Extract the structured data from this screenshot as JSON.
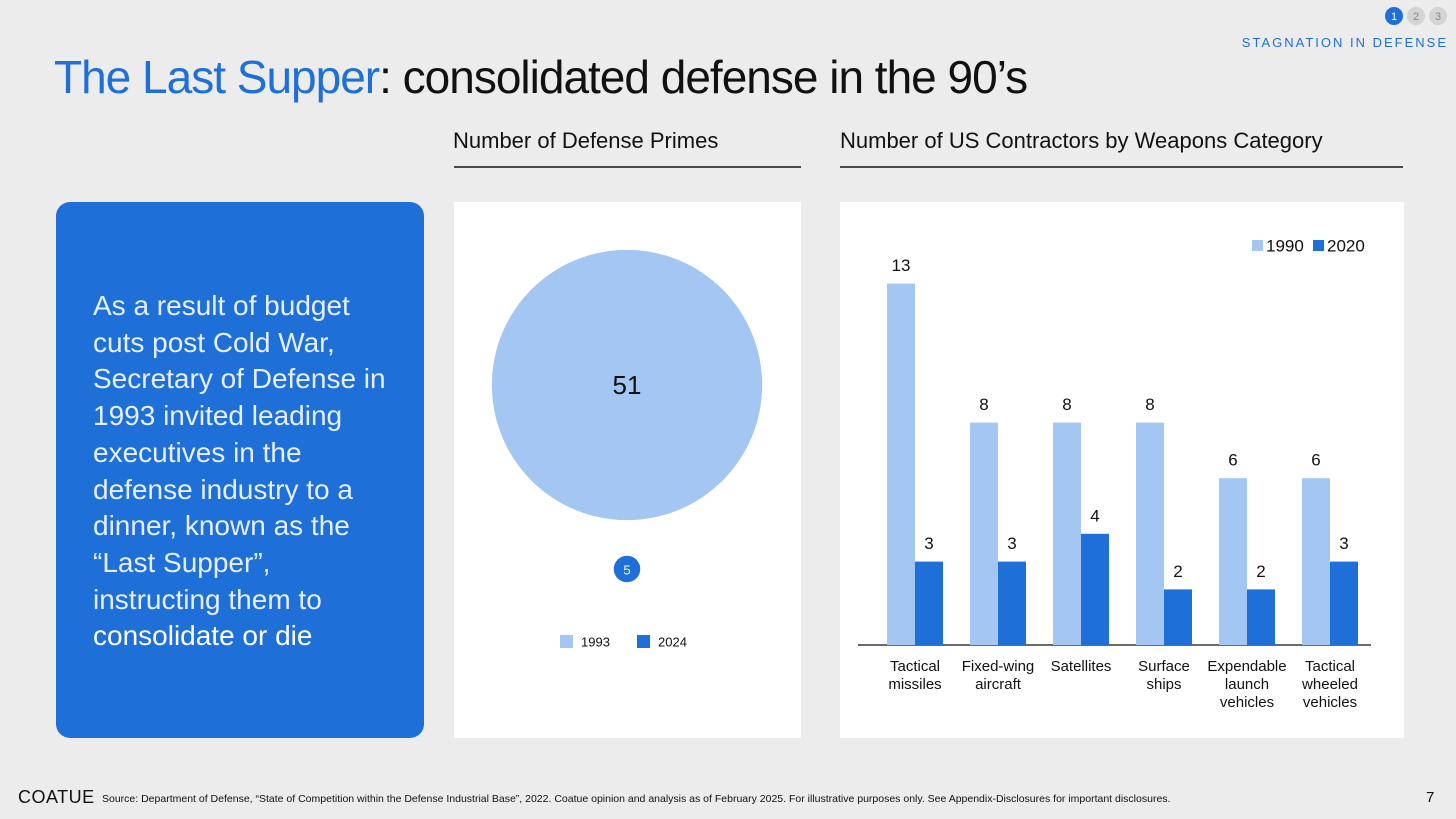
{
  "nav": {
    "steps": [
      "1",
      "2",
      "3"
    ],
    "section": "STAGNATION IN DEFENSE"
  },
  "title": {
    "highlight": "The Last Supper",
    "rest": ": consolidated defense in the 90’s"
  },
  "callout": {
    "text": "As a result of budget cuts post Cold War, Secretary of Defense in 1993 invited leading executives in the defense industry to a dinner, known as the “Last Supper”, instructing them to",
    "emphasis": "consolidate or die"
  },
  "chart_data": [
    {
      "type": "bubble",
      "title": "Number of Defense Primes",
      "categories": [
        "1993",
        "2024"
      ],
      "values": [
        51,
        5
      ],
      "colors": [
        "#a4c6f2",
        "#1f6fd9"
      ]
    },
    {
      "type": "bar",
      "title": "Number of US Contractors by Weapons Category",
      "categories": [
        "Tactical missiles",
        "Fixed-wing aircraft",
        "Satellites",
        "Surface ships",
        "Expendable launch vehicles",
        "Tactical wheeled vehicles"
      ],
      "series": [
        {
          "name": "1990",
          "color": "#a4c6f2",
          "values": [
            13,
            8,
            8,
            8,
            6,
            6
          ]
        },
        {
          "name": "2020",
          "color": "#1f6fd9",
          "values": [
            3,
            3,
            4,
            2,
            2,
            3
          ]
        }
      ],
      "legend": "top-right"
    }
  ],
  "footer": {
    "logo": "COATUE",
    "source": "Source: Department of Defense, “State of Competition within the Defense Industrial Base”, 2022. Coatue opinion and analysis as of February 2025. For illustrative purposes only. See Appendix-Disclosures for important disclosures.",
    "page": "7"
  }
}
